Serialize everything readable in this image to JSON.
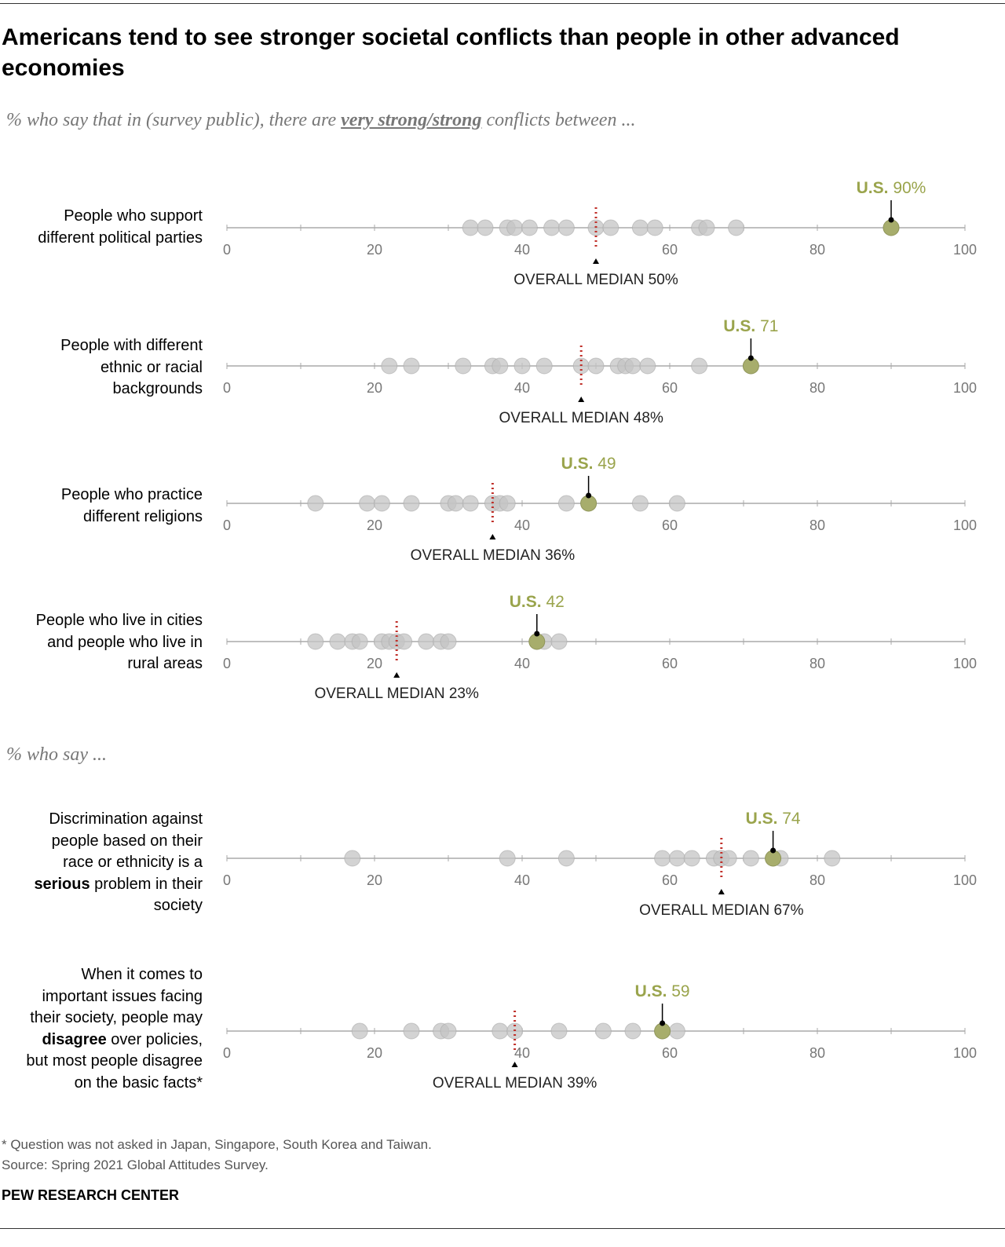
{
  "title": "Americans tend to see stronger societal conflicts than people in other advanced economies",
  "subtitle1": {
    "pre": "% who say that in (survey public), there are ",
    "emph": "very strong/strong",
    "post": " conflicts between ..."
  },
  "subtitle2": "% who say ...",
  "footnote": "* Question was not asked in Japan, Singapore, South Korea and Taiwan.",
  "source": "Source: Spring 2021 Global Attitudes Survey.",
  "brand": "PEW RESEARCH CENTER",
  "colors": {
    "other": "#c4c4c4",
    "us": "#a7ad6c",
    "us_text": "#9aa44c",
    "median": "#c0302a"
  },
  "chart_data": {
    "type": "scatter",
    "xlim": [
      0,
      100
    ],
    "ticks": [
      0,
      20,
      40,
      60,
      80,
      100
    ],
    "median_prefix": "OVERALL MEDIAN",
    "us_prefix": "U.S.",
    "rows": [
      {
        "label": "People who support different political parties",
        "label_lines": [
          "People who support",
          "different political parties"
        ],
        "values": [
          33,
          35,
          38,
          39,
          41,
          44,
          46,
          50,
          52,
          56,
          58,
          64,
          65,
          69
        ],
        "us": 90,
        "us_label": "90%",
        "median": 50,
        "median_label": "50%"
      },
      {
        "label": "People with different ethnic or racial backgrounds",
        "label_lines": [
          "People with different",
          "ethnic or racial",
          "backgrounds"
        ],
        "values": [
          22,
          25,
          32,
          36,
          37,
          40,
          43,
          48,
          50,
          53,
          54,
          55,
          57,
          64
        ],
        "us": 71,
        "us_label": "71",
        "median": 48,
        "median_label": "48%"
      },
      {
        "label": "People who practice different religions",
        "label_lines": [
          "People who practice",
          "different religions"
        ],
        "values": [
          12,
          19,
          21,
          25,
          30,
          31,
          33,
          36,
          37,
          38,
          46,
          56,
          61
        ],
        "us": 49,
        "us_label": "49",
        "median": 36,
        "median_label": "36%"
      },
      {
        "label": "People who live in cities and people who live in rural areas",
        "label_lines": [
          "People who live in cities",
          "and people who live in",
          "rural areas"
        ],
        "values": [
          12,
          15,
          17,
          18,
          21,
          22,
          23,
          24,
          27,
          29,
          30,
          43,
          45
        ],
        "us": 42,
        "us_label": "42",
        "median": 23,
        "median_label": "23%"
      },
      {
        "label": "Discrimination against people based on their race or ethnicity is a serious problem in their society",
        "label_lines": [
          "Discrimination against",
          "people based on their",
          "race or ethnicity is a",
          "<b>serious</b> problem in their",
          "society"
        ],
        "values": [
          17,
          38,
          46,
          59,
          61,
          63,
          66,
          67,
          68,
          71,
          75,
          82
        ],
        "us": 74,
        "us_label": "74",
        "median": 67,
        "median_label": "67%"
      },
      {
        "label": "When it comes to important issues facing their society, people may disagree over policies, but most people disagree on the basic facts*",
        "label_lines": [
          "When it comes to",
          "important issues facing",
          "their society, people may",
          "<b>disagree</b> over policies,",
          "but most people disagree",
          "on the basic facts*"
        ],
        "values": [
          18,
          25,
          29,
          30,
          37,
          39,
          45,
          51,
          55,
          61
        ],
        "us": 59,
        "us_label": "59",
        "median": 39,
        "median_label": "39%"
      }
    ]
  }
}
